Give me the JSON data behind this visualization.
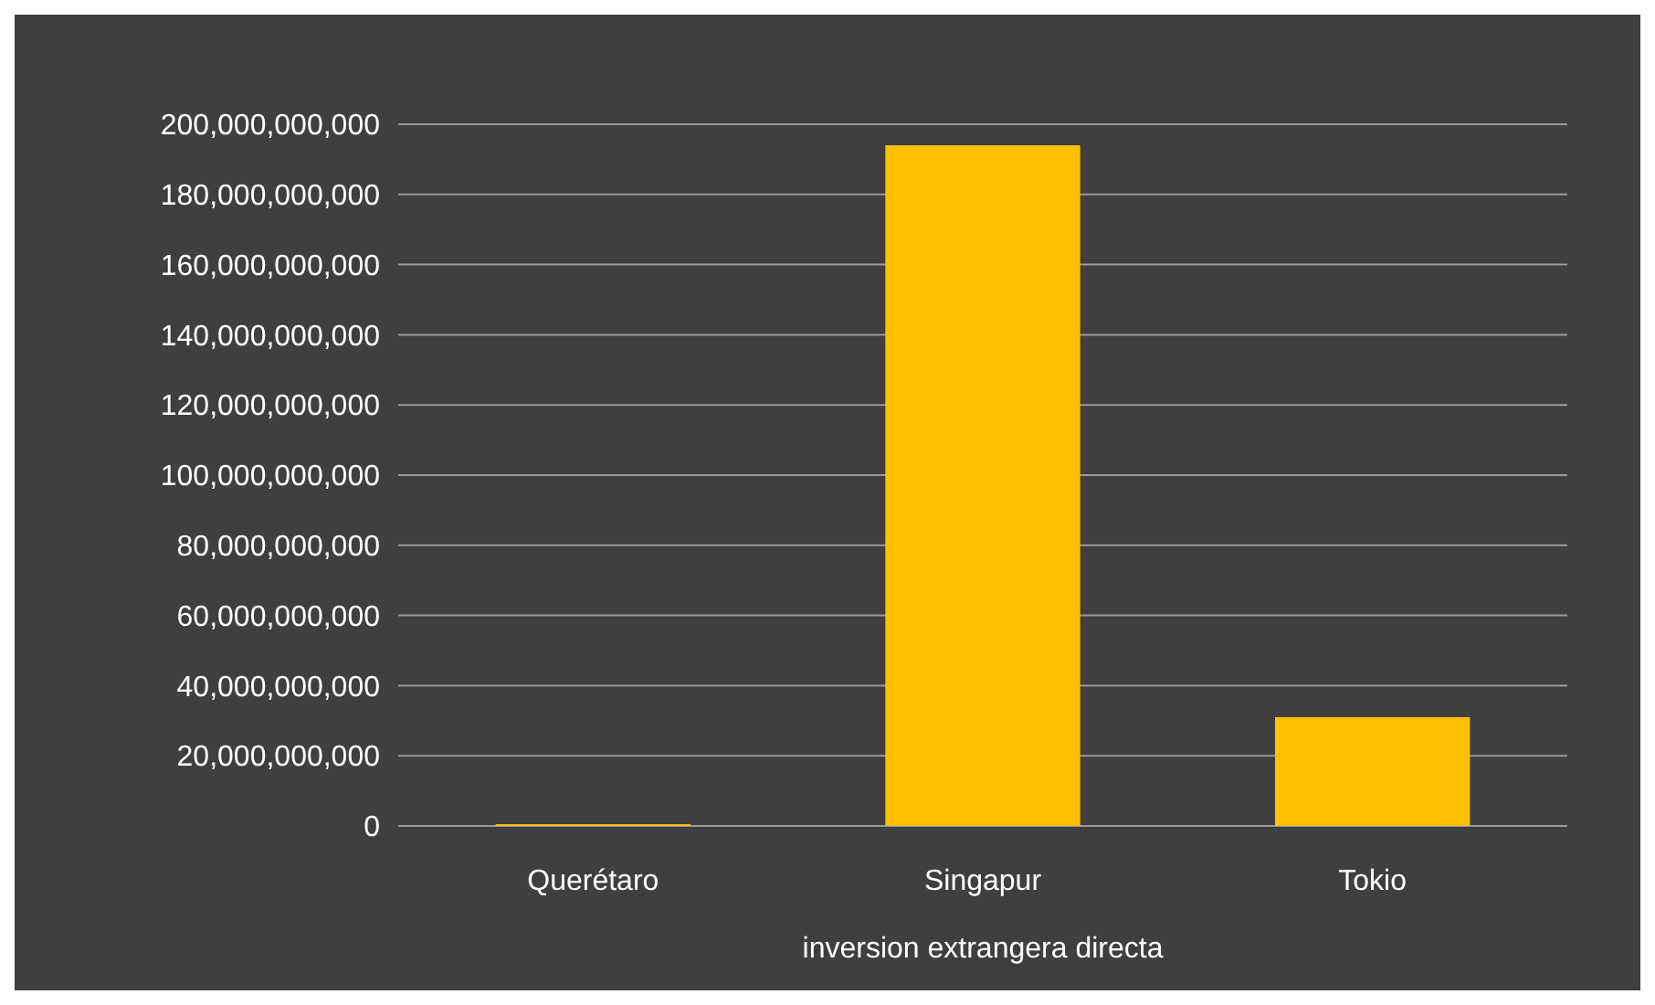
{
  "chart_data": {
    "type": "bar",
    "xlabel": "inversion extrangera directa",
    "categories": [
      "Querétaro",
      "Singapur",
      "Tokio"
    ],
    "values": [
      500000000,
      194000000000,
      31000000000
    ],
    "color": "#ffc000",
    "ylim": [
      0,
      200000000000
    ],
    "yticks": [
      {
        "value": 0,
        "label": "0"
      },
      {
        "value": 20000000000,
        "label": "20,000,000,000"
      },
      {
        "value": 40000000000,
        "label": "40,000,000,000"
      },
      {
        "value": 60000000000,
        "label": "60,000,000,000"
      },
      {
        "value": 80000000000,
        "label": "80,000,000,000"
      },
      {
        "value": 100000000000,
        "label": "100,000,000,000"
      },
      {
        "value": 120000000000,
        "label": "120,000,000,000"
      },
      {
        "value": 140000000000,
        "label": "140,000,000,000"
      },
      {
        "value": 160000000000,
        "label": "160,000,000,000"
      },
      {
        "value": 180000000000,
        "label": "180,000,000,000"
      },
      {
        "value": 200000000000,
        "label": "200,000,000,000"
      }
    ],
    "grid": "y"
  }
}
